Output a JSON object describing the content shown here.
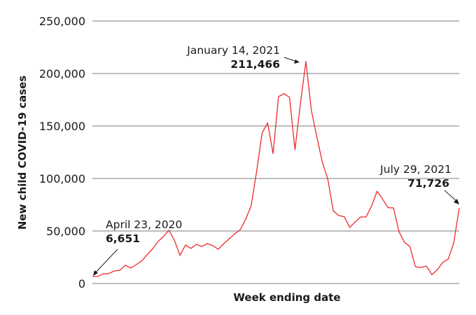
{
  "chart_data": {
    "type": "line",
    "title": "",
    "xlabel": "Week ending date",
    "ylabel": "New child COVID-19 cases",
    "ylim": [
      0,
      250000
    ],
    "yticks": [
      0,
      50000,
      100000,
      150000,
      200000,
      250000
    ],
    "ytick_labels": [
      "0",
      "50,000",
      "100,000",
      "150,000",
      "200,000",
      "250,000"
    ],
    "grid": true,
    "legend": null,
    "x_range": [
      "April 23, 2020",
      "July 29, 2021"
    ],
    "series": [
      {
        "name": "New child COVID-19 cases",
        "color": "#ee2a2a",
        "values": [
          6651,
          6700,
          9300,
          9500,
          12000,
          12500,
          17500,
          14700,
          18000,
          21500,
          27500,
          33000,
          40000,
          45000,
          50700,
          41000,
          26800,
          36700,
          33500,
          37300,
          35300,
          38000,
          36000,
          32600,
          38000,
          42600,
          47200,
          51300,
          61300,
          74000,
          106800,
          143400,
          152900,
          123700,
          178000,
          180800,
          177300,
          127500,
          171500,
          211466,
          164900,
          139400,
          115500,
          99500,
          69300,
          64700,
          63600,
          53400,
          58600,
          63400,
          63500,
          73900,
          87900,
          80500,
          72200,
          72000,
          49400,
          39200,
          35200,
          16000,
          15300,
          16600,
          8400,
          13100,
          20100,
          23300,
          38700,
          71726
        ]
      }
    ],
    "annotations": [
      {
        "date": "April 23, 2020",
        "value": "6,651",
        "index": 0
      },
      {
        "date": "January 14, 2021",
        "value": "211,466",
        "index": 39
      },
      {
        "date": "July 29, 2021",
        "value": "71,726",
        "index": 67
      }
    ]
  }
}
